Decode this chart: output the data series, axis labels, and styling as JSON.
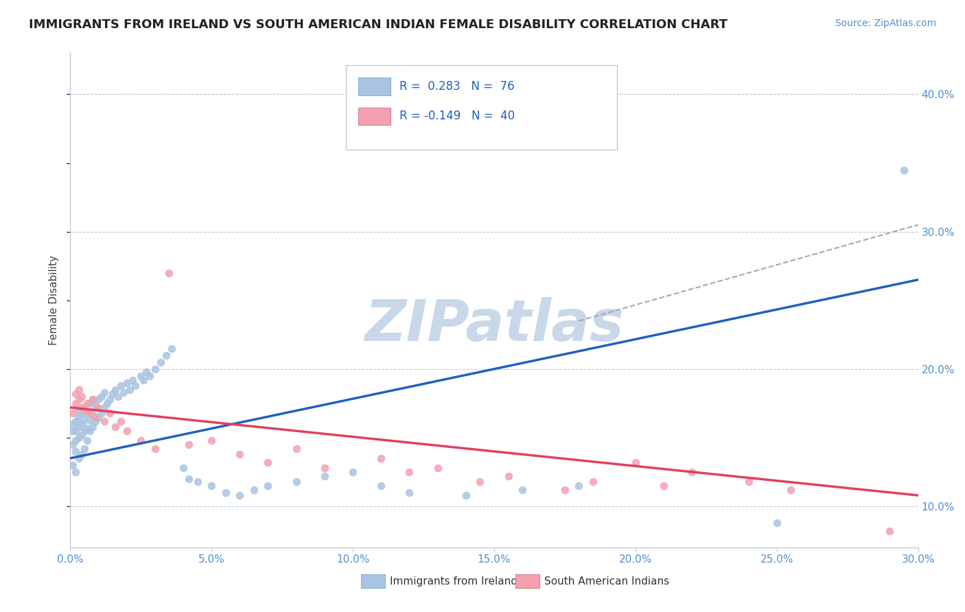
{
  "title": "IMMIGRANTS FROM IRELAND VS SOUTH AMERICAN INDIAN FEMALE DISABILITY CORRELATION CHART",
  "source": "Source: ZipAtlas.com",
  "ylabel": "Female Disability",
  "xlim": [
    0.0,
    0.3
  ],
  "ylim": [
    0.07,
    0.43
  ],
  "xticks": [
    0.0,
    0.05,
    0.1,
    0.15,
    0.2,
    0.25,
    0.3
  ],
  "yticks_right": [
    0.1,
    0.2,
    0.3,
    0.4
  ],
  "blue_R": 0.283,
  "blue_N": 76,
  "pink_R": -0.149,
  "pink_N": 40,
  "blue_color": "#a8c4e0",
  "pink_color": "#f4a0b0",
  "blue_line_color": "#2060c0",
  "pink_line_color": "#e04060",
  "watermark": "ZIPatlas",
  "watermark_color": "#c8d8e8",
  "legend_label_blue": "Immigrants from Ireland",
  "legend_label_pink": "South American Indians",
  "blue_scatter_x": [
    0.001,
    0.001,
    0.001,
    0.001,
    0.002,
    0.002,
    0.002,
    0.002,
    0.002,
    0.003,
    0.003,
    0.003,
    0.003,
    0.003,
    0.004,
    0.004,
    0.004,
    0.004,
    0.005,
    0.005,
    0.005,
    0.005,
    0.006,
    0.006,
    0.006,
    0.007,
    0.007,
    0.007,
    0.008,
    0.008,
    0.008,
    0.009,
    0.009,
    0.01,
    0.01,
    0.011,
    0.011,
    0.012,
    0.012,
    0.013,
    0.014,
    0.015,
    0.016,
    0.017,
    0.018,
    0.019,
    0.02,
    0.021,
    0.022,
    0.023,
    0.025,
    0.026,
    0.027,
    0.028,
    0.03,
    0.032,
    0.034,
    0.036,
    0.04,
    0.042,
    0.045,
    0.05,
    0.055,
    0.06,
    0.065,
    0.07,
    0.08,
    0.09,
    0.1,
    0.11,
    0.12,
    0.14,
    0.16,
    0.18,
    0.25,
    0.295
  ],
  "blue_scatter_y": [
    0.13,
    0.145,
    0.155,
    0.16,
    0.125,
    0.14,
    0.148,
    0.155,
    0.162,
    0.135,
    0.15,
    0.158,
    0.165,
    0.17,
    0.138,
    0.152,
    0.16,
    0.168,
    0.142,
    0.155,
    0.163,
    0.172,
    0.148,
    0.157,
    0.168,
    0.155,
    0.163,
    0.175,
    0.158,
    0.167,
    0.178,
    0.162,
    0.173,
    0.165,
    0.178,
    0.168,
    0.18,
    0.172,
    0.183,
    0.175,
    0.178,
    0.182,
    0.185,
    0.18,
    0.188,
    0.183,
    0.19,
    0.185,
    0.192,
    0.188,
    0.195,
    0.192,
    0.198,
    0.195,
    0.2,
    0.205,
    0.21,
    0.215,
    0.128,
    0.12,
    0.118,
    0.115,
    0.11,
    0.108,
    0.112,
    0.115,
    0.118,
    0.122,
    0.125,
    0.115,
    0.11,
    0.108,
    0.112,
    0.115,
    0.088,
    0.345
  ],
  "pink_scatter_x": [
    0.001,
    0.002,
    0.002,
    0.003,
    0.003,
    0.004,
    0.004,
    0.005,
    0.006,
    0.007,
    0.008,
    0.009,
    0.01,
    0.012,
    0.014,
    0.016,
    0.018,
    0.02,
    0.025,
    0.03,
    0.035,
    0.042,
    0.05,
    0.06,
    0.07,
    0.08,
    0.09,
    0.11,
    0.12,
    0.13,
    0.145,
    0.155,
    0.175,
    0.185,
    0.2,
    0.21,
    0.22,
    0.24,
    0.255,
    0.29
  ],
  "pink_scatter_y": [
    0.168,
    0.175,
    0.182,
    0.178,
    0.185,
    0.172,
    0.18,
    0.17,
    0.175,
    0.168,
    0.178,
    0.165,
    0.172,
    0.162,
    0.168,
    0.158,
    0.162,
    0.155,
    0.148,
    0.142,
    0.27,
    0.145,
    0.148,
    0.138,
    0.132,
    0.142,
    0.128,
    0.135,
    0.125,
    0.128,
    0.118,
    0.122,
    0.112,
    0.118,
    0.132,
    0.115,
    0.125,
    0.118,
    0.112,
    0.082
  ]
}
